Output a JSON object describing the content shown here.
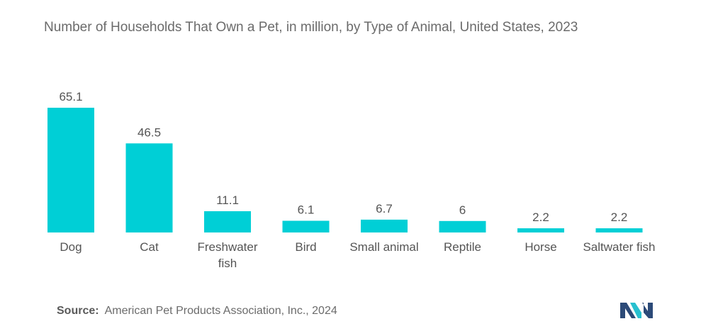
{
  "title": "Number of Households That Own a Pet, in million, by Type of Animal, United States, 2023",
  "source": {
    "label": "Source:",
    "text": "American Pet Products Association, Inc., 2024"
  },
  "colors": {
    "bar": "#00cfd6",
    "text": "#555555"
  },
  "chart_data": {
    "type": "bar",
    "title": "Number of Households That Own a Pet, in million, by Type of Animal, United States, 2023",
    "xlabel": "",
    "ylabel": "",
    "ylim": [
      0,
      65.1
    ],
    "grid": false,
    "categories": [
      [
        "Dog"
      ],
      [
        "Cat"
      ],
      [
        "Freshwater",
        "fish"
      ],
      [
        "Bird"
      ],
      [
        "Small animal"
      ],
      [
        "Reptile"
      ],
      [
        "Horse"
      ],
      [
        "Saltwater fish"
      ]
    ],
    "values": [
      65.1,
      46.5,
      11.1,
      6.1,
      6.7,
      6,
      2.2,
      2.2
    ],
    "value_labels": [
      "65.1",
      "46.5",
      "11.1",
      "6.1",
      "6.7",
      "6",
      "2.2",
      "2.2"
    ]
  }
}
